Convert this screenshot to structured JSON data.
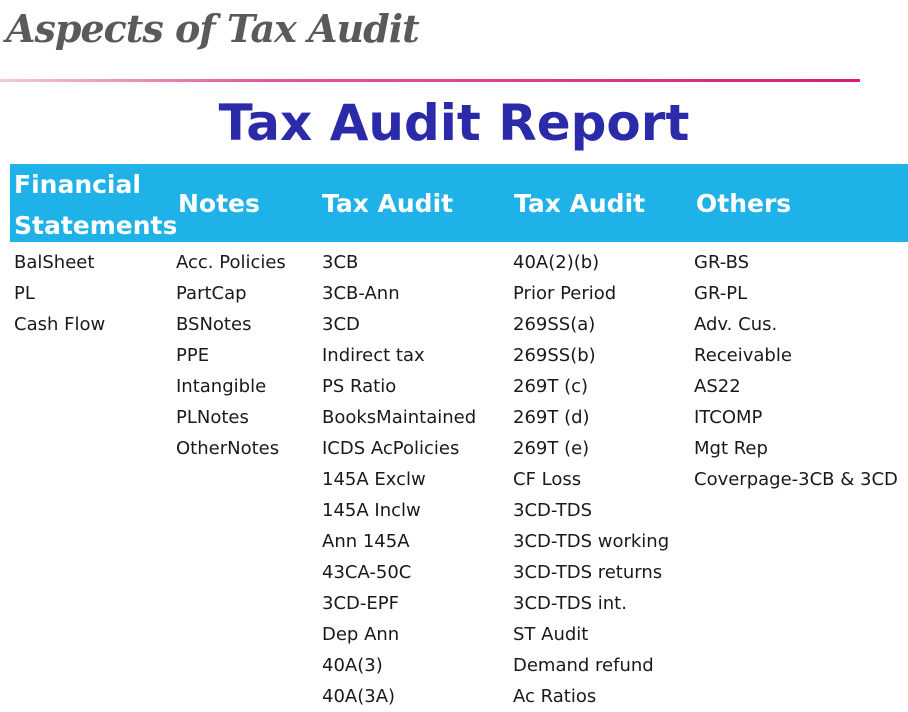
{
  "slide_title": "Aspects of Tax Audit",
  "report_title": "Tax Audit Report",
  "columns": [
    {
      "header": "Financial Statements",
      "items": [
        "BalSheet",
        "PL",
        "Cash Flow"
      ]
    },
    {
      "header": "Notes",
      "items": [
        "Acc. Policies",
        "PartCap",
        "BSNotes",
        "PPE",
        "Intangible",
        "PLNotes",
        "OtherNotes"
      ]
    },
    {
      "header": "Tax Audit",
      "items": [
        "3CB",
        "3CB-Ann",
        "3CD",
        "Indirect tax",
        "PS Ratio",
        "BooksMaintained",
        "ICDS AcPolicies",
        "145A Exclw",
        "145A Inclw",
        "Ann 145A",
        "43CA-50C",
        "3CD-EPF",
        "Dep Ann",
        "40A(3)",
        "40A(3A)"
      ]
    },
    {
      "header": "Tax Audit",
      "items": [
        "40A(2)(b)",
        "Prior Period",
        "269SS(a)",
        "269SS(b)",
        "269T (c)",
        "269T (d)",
        "269T (e)",
        "CF Loss",
        "3CD-TDS",
        "3CD-TDS working",
        "3CD-TDS returns",
        "3CD-TDS int.",
        "ST Audit",
        "Demand refund",
        "Ac Ratios"
      ]
    },
    {
      "header": "Others",
      "items": [
        "GR-BS",
        "GR-PL",
        "Adv. Cus.",
        "Receivable",
        "AS22",
        "ITCOMP",
        "Mgt Rep",
        "Coverpage-3CB & 3CD"
      ]
    }
  ],
  "colors": {
    "header_band": "#1fb2e8",
    "report_title": "#2b2aa8",
    "slide_title": "#5a5a5a",
    "divider": "#d81b7a"
  }
}
